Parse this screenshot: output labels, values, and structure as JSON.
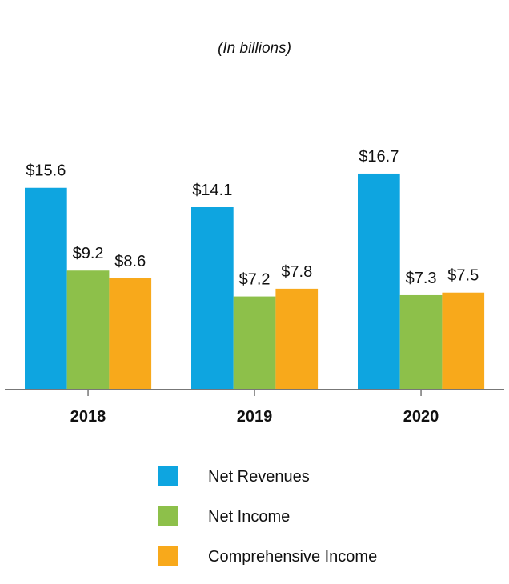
{
  "chart_data": {
    "type": "bar",
    "subtitle": "(In billions)",
    "categories": [
      "2018",
      "2019",
      "2020"
    ],
    "series": [
      {
        "name": "Net Revenues",
        "color": "#0EA5E0",
        "values": [
          15.6,
          14.1,
          16.7
        ],
        "labels": [
          "$15.6",
          "$14.1",
          "$16.7"
        ]
      },
      {
        "name": "Net Income",
        "color": "#8DC04A",
        "values": [
          9.2,
          7.2,
          7.3
        ],
        "labels": [
          "$9.2",
          "$7.2",
          "$7.3"
        ]
      },
      {
        "name": "Comprehensive Income",
        "color": "#F8A91B",
        "values": [
          8.6,
          7.8,
          7.5
        ],
        "labels": [
          "$8.6",
          "$7.8",
          "$7.5"
        ]
      }
    ],
    "ylim": [
      0,
      18
    ],
    "grid": false,
    "legend_position": "bottom"
  },
  "colors": {
    "axis": "#777777",
    "text": "#111111"
  }
}
